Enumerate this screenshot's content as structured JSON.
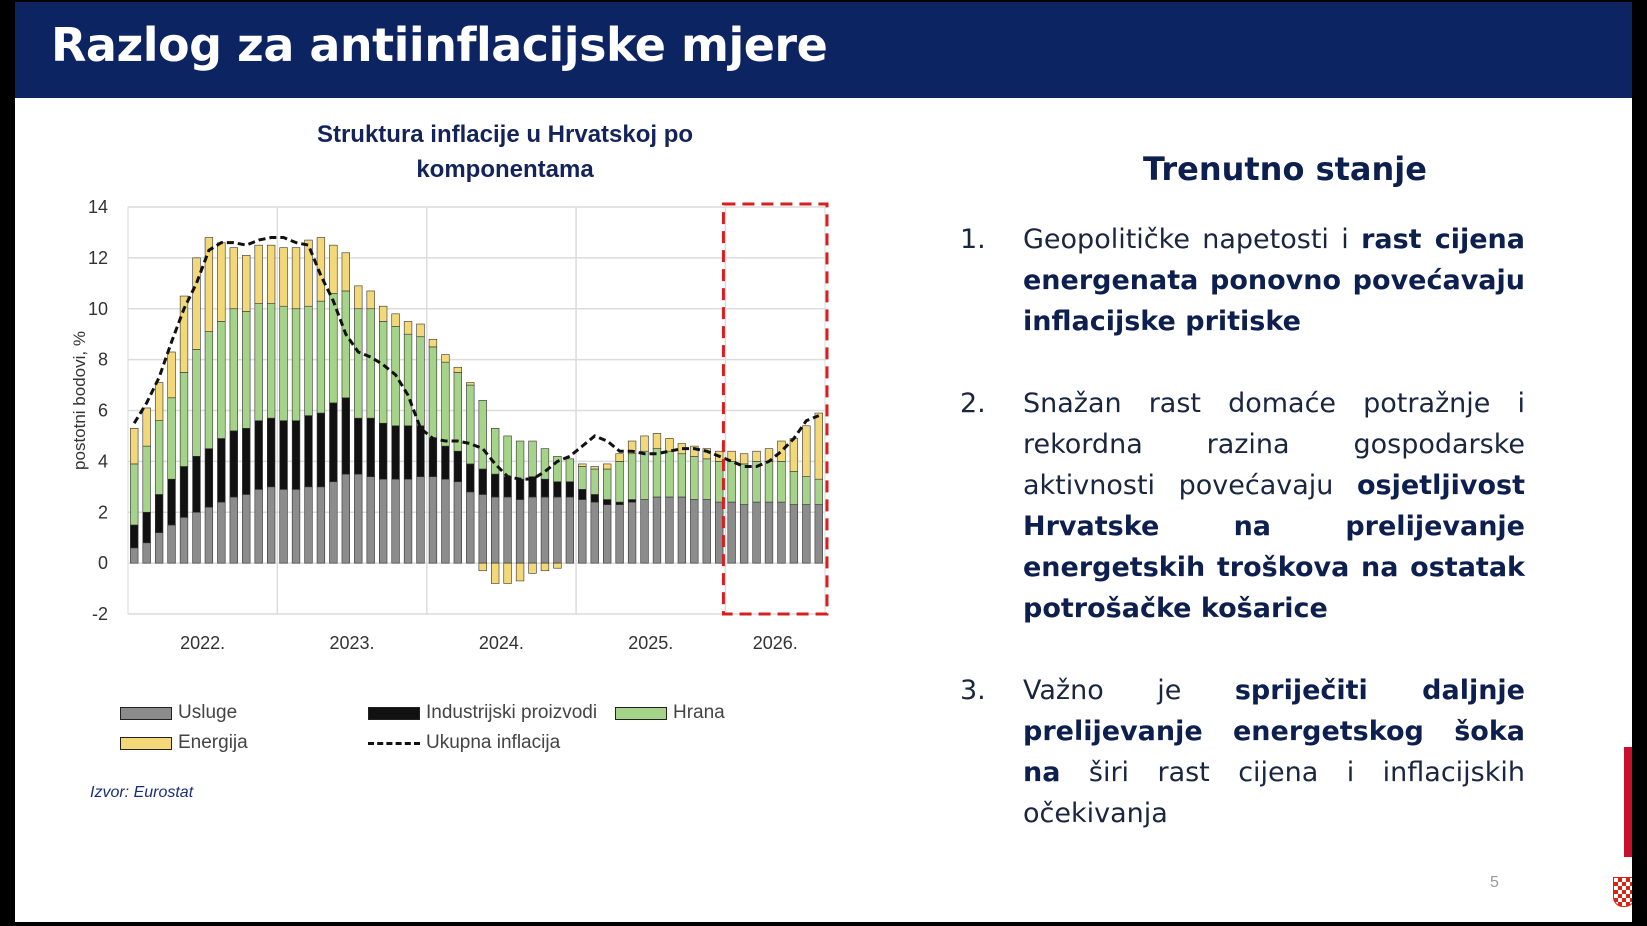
{
  "header": {
    "title": "Razlog za antiinflacijske mjere"
  },
  "chart_data": {
    "type": "bar",
    "title": "Struktura inflacije u Hrvatskoj po komponentama",
    "title_lines": [
      "Struktura inflacije u Hrvatskoj po",
      "komponentama"
    ],
    "ylabel": "postotni bodovi, %",
    "ylim": [
      -2,
      14
    ],
    "yticks": [
      -2,
      0,
      2,
      4,
      6,
      8,
      10,
      12,
      14
    ],
    "x_tick_labels": [
      "2022.",
      "2023.",
      "2024.",
      "2025.",
      "2026."
    ],
    "stacked": true,
    "grid": true,
    "legend_position": "bottom",
    "x": [
      "2022-01",
      "2022-02",
      "2022-03",
      "2022-04",
      "2022-05",
      "2022-06",
      "2022-07",
      "2022-08",
      "2022-09",
      "2022-10",
      "2022-11",
      "2022-12",
      "2023-01",
      "2023-02",
      "2023-03",
      "2023-04",
      "2023-05",
      "2023-06",
      "2023-07",
      "2023-08",
      "2023-09",
      "2023-10",
      "2023-11",
      "2023-12",
      "2024-01",
      "2024-02",
      "2024-03",
      "2024-04",
      "2024-05",
      "2024-06",
      "2024-07",
      "2024-08",
      "2024-09",
      "2024-10",
      "2024-11",
      "2024-12",
      "2025-01",
      "2025-02",
      "2025-03",
      "2025-04",
      "2025-05",
      "2025-06",
      "2025-07",
      "2025-08",
      "2025-09",
      "2025-10",
      "2025-11",
      "2025-12",
      "2026-01",
      "2026-02",
      "2026-03",
      "2026-04",
      "2026-05",
      "2026-06",
      "2026-07",
      "2026-08"
    ],
    "series": [
      {
        "name": "Usluge",
        "color": "#8c8c8c",
        "values": [
          0.6,
          0.8,
          1.2,
          1.5,
          1.8,
          2.0,
          2.2,
          2.4,
          2.6,
          2.7,
          2.9,
          3.0,
          2.9,
          2.9,
          3.0,
          3.0,
          3.2,
          3.5,
          3.5,
          3.4,
          3.3,
          3.3,
          3.3,
          3.4,
          3.4,
          3.3,
          3.2,
          2.8,
          2.7,
          2.6,
          2.6,
          2.5,
          2.6,
          2.6,
          2.6,
          2.6,
          2.5,
          2.4,
          2.3,
          2.3,
          2.4,
          2.5,
          2.6,
          2.6,
          2.6,
          2.5,
          2.5,
          2.4,
          2.4,
          2.3,
          2.4,
          2.4,
          2.4,
          2.3,
          2.3,
          2.3
        ]
      },
      {
        "name": "Industrijski proizvodi",
        "color": "#111111",
        "values": [
          0.9,
          1.2,
          1.5,
          1.8,
          2.0,
          2.2,
          2.3,
          2.5,
          2.6,
          2.6,
          2.7,
          2.7,
          2.7,
          2.7,
          2.8,
          2.9,
          3.1,
          3.0,
          2.2,
          2.3,
          2.2,
          2.1,
          2.1,
          2.0,
          1.5,
          1.3,
          1.2,
          1.1,
          1.0,
          0.9,
          0.8,
          0.8,
          0.8,
          0.7,
          0.6,
          0.6,
          0.4,
          0.3,
          0.2,
          0.1,
          0.1,
          0.0,
          0.0,
          0.0,
          0.0,
          0.0,
          0.0,
          0.0,
          0.0,
          0.0,
          0.0,
          0.0,
          0.0,
          0.0,
          0.0,
          0.0
        ]
      },
      {
        "name": "Hrana",
        "color": "#a6d38a",
        "values": [
          2.4,
          2.6,
          2.9,
          3.2,
          3.7,
          4.2,
          4.6,
          4.6,
          4.8,
          4.6,
          4.6,
          4.5,
          4.5,
          4.4,
          4.3,
          4.4,
          4.3,
          4.2,
          4.3,
          4.3,
          4.0,
          3.9,
          3.6,
          3.5,
          3.6,
          3.3,
          3.1,
          3.1,
          2.7,
          1.8,
          1.6,
          1.5,
          1.4,
          1.2,
          1.0,
          0.9,
          0.9,
          1.0,
          1.2,
          1.6,
          1.8,
          1.9,
          1.9,
          1.8,
          1.7,
          1.7,
          1.6,
          1.6,
          1.6,
          1.6,
          1.6,
          1.6,
          1.6,
          1.3,
          1.1,
          1.0
        ]
      },
      {
        "name": "Energija",
        "color": "#f2d878",
        "values": [
          1.4,
          1.5,
          1.5,
          1.8,
          3.0,
          3.6,
          3.7,
          3.1,
          2.4,
          2.2,
          2.3,
          2.3,
          2.3,
          2.4,
          2.6,
          2.5,
          1.9,
          1.5,
          0.9,
          0.7,
          0.6,
          0.5,
          0.5,
          0.5,
          0.3,
          0.3,
          0.2,
          0.1,
          -0.3,
          -0.8,
          -0.8,
          -0.7,
          -0.4,
          -0.3,
          -0.2,
          0.0,
          0.1,
          0.1,
          0.2,
          0.3,
          0.5,
          0.6,
          0.6,
          0.5,
          0.4,
          0.4,
          0.4,
          0.4,
          0.4,
          0.4,
          0.4,
          0.5,
          0.8,
          1.3,
          2.0,
          2.6
        ]
      }
    ],
    "total_line": {
      "name": "Ukupna inflacija",
      "values": [
        5.5,
        6.3,
        7.3,
        8.7,
        10.0,
        11.0,
        12.3,
        12.6,
        12.6,
        12.5,
        12.7,
        12.8,
        12.8,
        12.6,
        12.5,
        11.3,
        10.3,
        9.0,
        8.3,
        8.1,
        7.8,
        7.4,
        6.6,
        5.3,
        4.9,
        4.8,
        4.8,
        4.7,
        4.5,
        3.9,
        3.4,
        3.3,
        3.3,
        3.6,
        4.0,
        4.2,
        4.6,
        5.0,
        4.8,
        4.4,
        4.4,
        4.3,
        4.3,
        4.4,
        4.5,
        4.5,
        4.4,
        4.2,
        4.0,
        3.8,
        3.8,
        4.0,
        4.4,
        4.9,
        5.6,
        5.8
      ]
    },
    "highlight_range": [
      "2026-01",
      "2026-08"
    ],
    "highlight_color": "#d42020",
    "source": "Izvor: Eurostat"
  },
  "panel": {
    "title": "Trenutno stanje",
    "points": [
      {
        "num": "1.",
        "plain1": "Geopolitičke napetosti i ",
        "bold": "rast cijena energenata ponovno povećavaju inflacijske pritiske",
        "plain2": ""
      },
      {
        "num": "2.",
        "plain1": "Snažan rast domaće potražnje i rekordna razina gospodarske aktivnosti povećavaju ",
        "bold": "osjetljivost Hrvatske na prelijevanje energetskih troškova na ostatak potrošačke košarice",
        "plain2": ""
      },
      {
        "num": "3.",
        "plain1": "Važno je ",
        "bold": "spriječiti daljnje prelijevanje energetskog šoka na",
        "plain2": " širi rast cijena i inflacijskih očekivanja"
      }
    ]
  },
  "page_number": "5",
  "colors": {
    "header_bg": "#0d2463",
    "accent_red": "#c8102e"
  }
}
